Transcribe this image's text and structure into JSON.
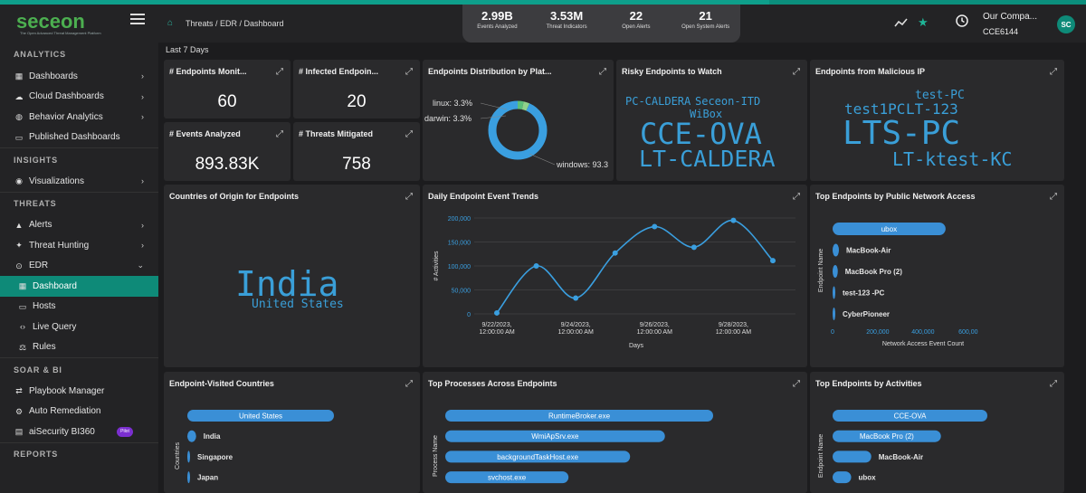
{
  "brand": {
    "name": "seceon",
    "tagline": "The Open Advanced Threat Management Platform"
  },
  "sidebar": {
    "sections": [
      {
        "title": "ANALYTICS",
        "items": [
          {
            "label": "Dashboards",
            "icon": "dashboard-icon",
            "chevron": true
          },
          {
            "label": "Cloud Dashboards",
            "icon": "cloud-icon",
            "chevron": true
          },
          {
            "label": "Behavior Analytics",
            "icon": "behavior-icon",
            "chevron": true
          },
          {
            "label": "Published Dashboards",
            "icon": "monitor-icon",
            "chevron": false
          }
        ]
      },
      {
        "title": "INSIGHTS",
        "items": [
          {
            "label": "Visualizations",
            "icon": "eye-icon",
            "chevron": true
          }
        ]
      },
      {
        "title": "THREATS",
        "items": [
          {
            "label": "Alerts",
            "icon": "alert-icon",
            "chevron": true
          },
          {
            "label": "Threat Hunting",
            "icon": "hunting-icon",
            "chevron": true
          },
          {
            "label": "EDR",
            "icon": "edr-icon",
            "chevron": "down"
          },
          {
            "label": "Dashboard",
            "icon": "dashboard-icon",
            "sub": true,
            "active": true
          },
          {
            "label": "Hosts",
            "icon": "monitor-icon",
            "sub": true
          },
          {
            "label": "Live Query",
            "icon": "code-icon",
            "sub": true
          },
          {
            "label": "Rules",
            "icon": "rules-icon",
            "sub": true
          }
        ]
      },
      {
        "title": "SOAR & BI",
        "items": [
          {
            "label": "Playbook Manager",
            "icon": "playbook-icon"
          },
          {
            "label": "Auto Remediation",
            "icon": "settings-icon"
          },
          {
            "label": "aiSecurity BI360",
            "icon": "bi-icon",
            "badge": "Pilot"
          }
        ]
      },
      {
        "title": "REPORTS",
        "items": []
      }
    ]
  },
  "topbar": {
    "breadcrumb": "Threats / EDR / Dashboard",
    "stats": [
      {
        "value": "2.99B",
        "label": "Events Analyzed"
      },
      {
        "value": "3.53M",
        "label": "Threat Indicators"
      },
      {
        "value": "22",
        "label": "Open Alerts"
      },
      {
        "value": "21",
        "label": "Open System Alerts"
      }
    ],
    "org_name": "Our Compa...",
    "org_id": "CCE6144",
    "avatar": "SC"
  },
  "period": "Last 7 Days",
  "kpis": [
    {
      "title": "# Endpoints Monit...",
      "value": "60"
    },
    {
      "title": "# Infected Endpoin...",
      "value": "20"
    },
    {
      "title": "# Events Analyzed",
      "value": "893.83K"
    },
    {
      "title": "# Threats Mitigated",
      "value": "758"
    }
  ],
  "cards": {
    "distribution": "Endpoints Distribution by Plat...",
    "risky": "Risky Endpoints to Watch",
    "malicious": "Endpoints from Malicious IP",
    "countries": "Countries of Origin for Endpoints",
    "trends": "Daily Endpoint Event Trends",
    "public": "Top Endpoints by Public Network Access",
    "visited": "Endpoint-Visited Countries",
    "processes": "Top Processes Across Endpoints",
    "activities": "Top Endpoints by Activities"
  },
  "wordclouds": {
    "risky": [
      "PC-CALDERA",
      "Seceon-ITD",
      "WiBox",
      "CCE-OVA",
      "LT-CALDERA"
    ],
    "malicious": [
      "test-PC",
      "test1PC",
      "LT-123",
      "LTS-PC",
      "LT-ktest-KC"
    ],
    "countries": [
      "India",
      "United States"
    ]
  },
  "chart_data": [
    {
      "type": "pie",
      "title": "Endpoints Distribution by Plat...",
      "labels": [
        "linux",
        "darwin",
        "windows"
      ],
      "display_labels": [
        "linux: 3.3%",
        "darwin: 3.3%",
        "windows: 93.3"
      ],
      "values": [
        3.3,
        3.3,
        93.3
      ],
      "colors": [
        "#5bbf7a",
        "#8fd18a",
        "#3a9fe0"
      ]
    },
    {
      "type": "line",
      "title": "Daily Endpoint Event Trends",
      "xlabel": "Days",
      "ylabel": "# Activities",
      "x": [
        "9/22/2023",
        "9/23/2023",
        "9/24/2023",
        "9/25/2023",
        "9/26/2023",
        "9/27/2023",
        "9/28/2023",
        "9/29/2023"
      ],
      "y": [
        2000,
        100000,
        33000,
        127000,
        182000,
        139000,
        195000,
        111000
      ],
      "xticks": [
        {
          "date": "9/22/2023,",
          "time": "12:00:00 AM"
        },
        {
          "date": "9/24/2023,",
          "time": "12:00:00 AM"
        },
        {
          "date": "9/26/2023,",
          "time": "12:00:00 AM"
        },
        {
          "date": "9/28/2023,",
          "time": "12:00:00 AM"
        }
      ],
      "yticks": [
        "0",
        "50,000",
        "100,000",
        "150,000",
        "200,000"
      ],
      "ylim": [
        0,
        200000
      ]
    },
    {
      "type": "bar",
      "title": "Top Endpoints by Public Network Access",
      "xlabel": "Network Access Event Count",
      "ylabel": "Endpoint Name",
      "categories": [
        "ubox",
        "MacBook-Air",
        "MacBook Pro (2)",
        "test-123 -PC",
        "CyberPioneer"
      ],
      "values": [
        500000,
        28000,
        23000,
        8000,
        7000
      ],
      "xticks": [
        "0",
        "200,000",
        "400,000",
        "600,00"
      ],
      "xlim": [
        0,
        600000
      ]
    },
    {
      "type": "bar",
      "title": "Endpoint-Visited Countries",
      "ylabel": "Countries",
      "categories": [
        "United States",
        "India",
        "Singapore",
        "Japan"
      ],
      "values": [
        100,
        6,
        1,
        1
      ]
    },
    {
      "type": "bar",
      "title": "Top Processes Across Endpoints",
      "ylabel": "Process Name",
      "categories": [
        "RuntimeBroker.exe",
        "WmiApSrv.exe",
        "backgroundTaskHost.exe",
        "svchost.exe"
      ],
      "values": [
        100,
        82,
        69,
        46
      ]
    },
    {
      "type": "bar",
      "title": "Top Endpoints by Activities",
      "ylabel": "Endpoint Name",
      "categories": [
        "CCE-OVA",
        "MacBook Pro (2)",
        "MacBook-Air",
        "ubox"
      ],
      "values": [
        100,
        70,
        25,
        12
      ]
    }
  ]
}
